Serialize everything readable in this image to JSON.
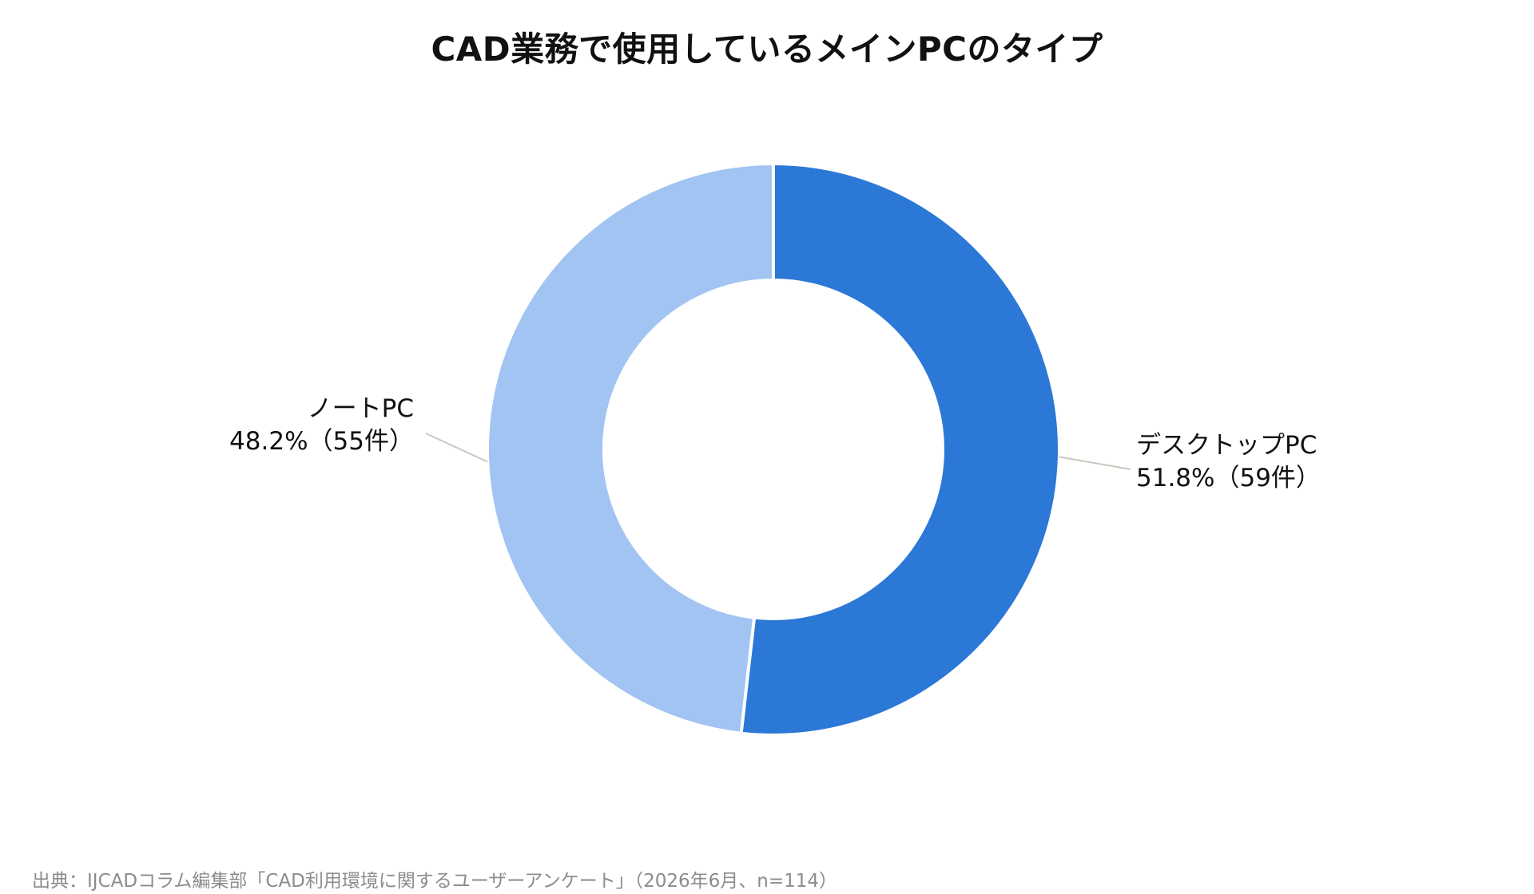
{
  "chart_data": {
    "type": "pie",
    "title": "CAD業務で使用しているメインPCのタイプ",
    "series": [
      {
        "name": "デスクトップPC",
        "percent": 51.8,
        "count": 59,
        "value_label": "51.8%（59件）",
        "color": "#2b78d6"
      },
      {
        "name": "ノートPC",
        "percent": 48.2,
        "count": 55,
        "value_label": "48.2%（55件）",
        "color": "#a1c4f2"
      }
    ],
    "donut": true,
    "start": "top, clockwise",
    "leader_line_color": "#c8c8be"
  },
  "source": "出典：IJCADコラム編集部「CAD利用環境に関するユーザーアンケート」（2026年6月、n=114）"
}
